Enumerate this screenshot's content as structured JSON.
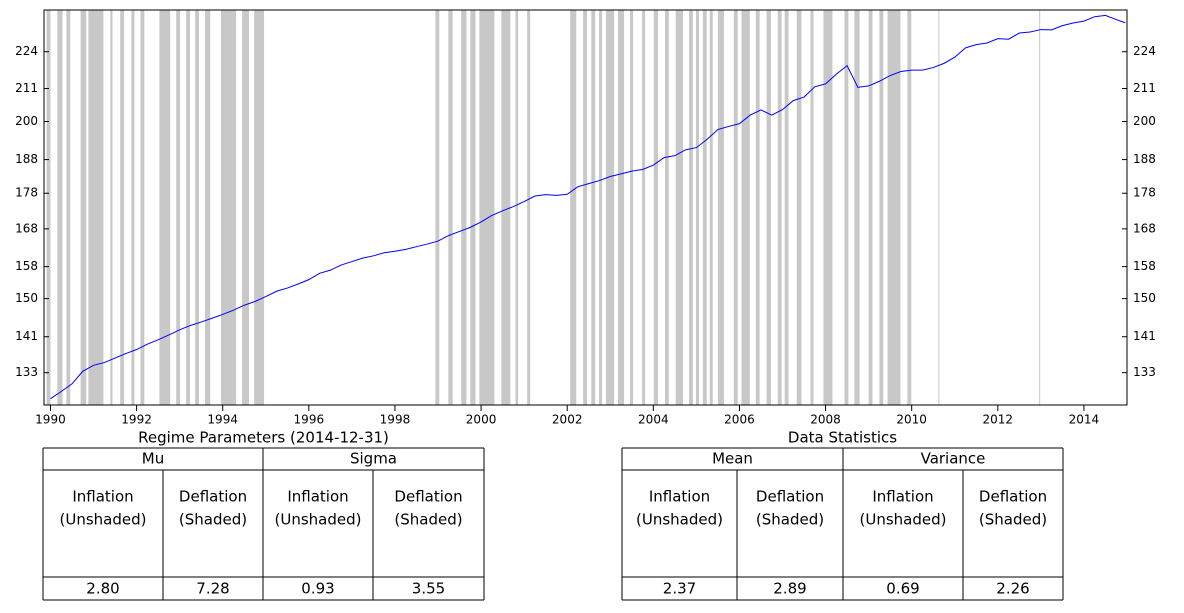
{
  "chart_data": {
    "type": "line",
    "log_scale": true,
    "color": "#0000ff",
    "shade_color": "#c8c8c8",
    "xlim": [
      1989.85,
      2015.0
    ],
    "ylim": [
      126.2,
      239.7
    ],
    "xticks": [
      1990,
      1992,
      1994,
      1996,
      1998,
      2000,
      2002,
      2004,
      2006,
      2008,
      2010,
      2012,
      2014
    ],
    "yticks": [
      133,
      141,
      150,
      158,
      168,
      178,
      188,
      200,
      211,
      224
    ],
    "x": [
      1990,
      1990.25,
      1990.5,
      1990.75,
      1991,
      1991.25,
      1991.5,
      1991.75,
      1992,
      1992.25,
      1992.5,
      1992.75,
      1993,
      1993.25,
      1993.5,
      1993.75,
      1994,
      1994.25,
      1994.5,
      1994.75,
      1995,
      1995.25,
      1995.5,
      1995.75,
      1996,
      1996.25,
      1996.5,
      1996.75,
      1997,
      1997.25,
      1997.5,
      1997.75,
      1998,
      1998.25,
      1998.5,
      1998.75,
      1999,
      1999.25,
      1999.5,
      1999.75,
      2000,
      2000.25,
      2000.5,
      2000.75,
      2001,
      2001.25,
      2001.5,
      2001.75,
      2002,
      2002.25,
      2002.5,
      2002.75,
      2003,
      2003.25,
      2003.5,
      2003.75,
      2004,
      2004.25,
      2004.5,
      2004.75,
      2005,
      2005.25,
      2005.5,
      2005.75,
      2006,
      2006.25,
      2006.5,
      2006.75,
      2007,
      2007.25,
      2007.5,
      2007.75,
      2008,
      2008.25,
      2008.5,
      2008.75,
      2009,
      2009.25,
      2009.5,
      2009.75,
      2010,
      2010.25,
      2010.5,
      2010.75,
      2011,
      2011.25,
      2011.5,
      2011.75,
      2012,
      2012.25,
      2012.5,
      2012.75,
      2013,
      2013.25,
      2013.5,
      2013.75,
      2014,
      2014.25,
      2014.5,
      2014.75,
      2014.96
    ],
    "values": [
      127.5,
      129.0,
      130.6,
      133.3,
      134.6,
      135.2,
      136.2,
      137.2,
      138.1,
      139.3,
      140.3,
      141.4,
      142.6,
      143.6,
      144.4,
      145.3,
      146.2,
      147.2,
      148.4,
      149.3,
      150.5,
      151.8,
      152.6,
      153.6,
      154.7,
      156.3,
      157.1,
      158.4,
      159.3,
      160.2,
      160.8,
      161.6,
      162.0,
      162.5,
      163.2,
      163.9,
      164.7,
      166.2,
      167.3,
      168.4,
      169.9,
      171.7,
      173.0,
      174.2,
      175.6,
      177.2,
      177.6,
      177.4,
      177.7,
      179.9,
      180.8,
      181.7,
      182.9,
      183.7,
      184.5,
      185.0,
      186.3,
      188.6,
      189.2,
      191.0,
      191.7,
      194.3,
      197.4,
      198.4,
      199.3,
      202.1,
      203.8,
      202.1,
      203.9,
      206.9,
      208.1,
      211.6,
      212.6,
      216.0,
      219.0,
      211.4,
      211.9,
      213.5,
      215.5,
      216.9,
      217.4,
      217.4,
      218.3,
      219.8,
      222.0,
      225.4,
      226.6,
      227.2,
      228.8,
      228.6,
      230.9,
      231.3,
      232.2,
      232.1,
      233.7,
      234.7,
      235.4,
      237.1,
      237.6,
      236.0,
      234.8
    ],
    "shaded_regions": [
      [
        1989.91,
        1990.0
      ],
      [
        1990.16,
        1990.28
      ],
      [
        1990.37,
        1990.46
      ],
      [
        1990.7,
        1990.83
      ],
      [
        1990.88,
        1991.23
      ],
      [
        1991.39,
        1991.44
      ],
      [
        1991.62,
        1991.71
      ],
      [
        1991.88,
        1991.95
      ],
      [
        1992.09,
        1992.18
      ],
      [
        1992.53,
        1992.78
      ],
      [
        1992.92,
        1993.01
      ],
      [
        1993.15,
        1993.24
      ],
      [
        1993.36,
        1993.45
      ],
      [
        1993.59,
        1993.71
      ],
      [
        1993.96,
        1994.31
      ],
      [
        1994.45,
        1994.61
      ],
      [
        1994.73,
        1994.96
      ],
      [
        1998.94,
        1999.03
      ],
      [
        1999.24,
        1999.34
      ],
      [
        1999.54,
        1999.66
      ],
      [
        1999.75,
        1999.87
      ],
      [
        1999.96,
        2000.31
      ],
      [
        2000.47,
        2000.68
      ],
      [
        2000.8,
        2000.86
      ],
      [
        2001.07,
        2001.14
      ],
      [
        2002.07,
        2002.21
      ],
      [
        2002.37,
        2002.46
      ],
      [
        2002.56,
        2002.65
      ],
      [
        2002.74,
        2002.81
      ],
      [
        2002.9,
        2003.09
      ],
      [
        2003.18,
        2003.32
      ],
      [
        2003.46,
        2003.53
      ],
      [
        2003.74,
        2003.81
      ],
      [
        2004.01,
        2004.11
      ],
      [
        2004.27,
        2004.36
      ],
      [
        2004.52,
        2004.69
      ],
      [
        2004.83,
        2004.92
      ],
      [
        2004.99,
        2005.06
      ],
      [
        2005.15,
        2005.24
      ],
      [
        2005.31,
        2005.38
      ],
      [
        2005.5,
        2005.64
      ],
      [
        2005.87,
        2005.96
      ],
      [
        2006.05,
        2006.24
      ],
      [
        2006.38,
        2006.47
      ],
      [
        2006.63,
        2006.73
      ],
      [
        2006.89,
        2006.98
      ],
      [
        2007.05,
        2007.14
      ],
      [
        2007.33,
        2007.44
      ],
      [
        2007.65,
        2007.72
      ],
      [
        2007.95,
        2008.16
      ],
      [
        2008.44,
        2008.53
      ],
      [
        2008.67,
        2008.79
      ],
      [
        2009.0,
        2009.09
      ],
      [
        2009.25,
        2009.34
      ],
      [
        2009.44,
        2009.74
      ],
      [
        2009.9,
        2009.99
      ],
      [
        2010.62,
        2010.64
      ],
      [
        2012.96,
        2012.98
      ]
    ]
  },
  "tables": [
    {
      "title": "Regime Parameters (2014-12-31)",
      "groups": [
        "Mu",
        "Sigma"
      ],
      "columns": [
        [
          "Inflation",
          "(Unshaded)"
        ],
        [
          "Deflation",
          "(Shaded)"
        ],
        [
          "Inflation",
          "(Unshaded)"
        ],
        [
          "Deflation",
          "(Shaded)"
        ]
      ],
      "values": [
        "2.80",
        "7.28",
        "0.93",
        "3.55"
      ]
    },
    {
      "title": "Data Statistics",
      "groups": [
        "Mean",
        "Variance"
      ],
      "columns": [
        [
          "Inflation",
          "(Unshaded)"
        ],
        [
          "Deflation",
          "(Shaded)"
        ],
        [
          "Inflation",
          "(Unshaded)"
        ],
        [
          "Deflation",
          "(Shaded)"
        ]
      ],
      "values": [
        "2.37",
        "2.89",
        "0.69",
        "2.26"
      ]
    }
  ]
}
